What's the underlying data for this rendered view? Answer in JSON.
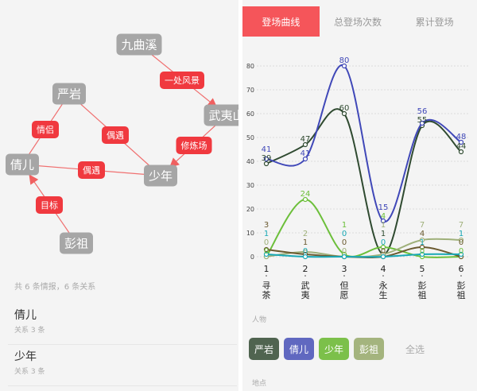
{
  "graph": {
    "nodes": [
      {
        "id": "jqx",
        "label": "九曲溪"
      },
      {
        "id": "yy",
        "label": "严岩"
      },
      {
        "id": "wys",
        "label": "武夷山"
      },
      {
        "id": "qe",
        "label": "倩儿"
      },
      {
        "id": "sn",
        "label": "少年"
      },
      {
        "id": "pz",
        "label": "彭祖"
      }
    ],
    "edges": [
      {
        "from": "jqx",
        "to": "wys",
        "label": "一处风景",
        "directed": true
      },
      {
        "from": "yy",
        "to": "qe",
        "label": "情侣",
        "directed": false
      },
      {
        "from": "yy",
        "to": "sn",
        "label": "偶遇",
        "directed": false
      },
      {
        "from": "wys",
        "to": "sn",
        "label": "修炼场",
        "directed": true
      },
      {
        "from": "sn",
        "to": "qe",
        "label": "偶遇",
        "directed": false
      },
      {
        "from": "pz",
        "to": "qe",
        "label": "目标",
        "directed": true
      }
    ],
    "node_color": "#a6a6a6",
    "edge_color": "#f0393f"
  },
  "summary": "共 6 条情报，6 条关系",
  "list": [
    {
      "name": "倩儿",
      "sub": "关系 3 条"
    },
    {
      "name": "少年",
      "sub": "关系 3 条"
    }
  ],
  "tabs": [
    "登场曲线",
    "总登场次数",
    "累计登场"
  ],
  "accent": "#f5555a",
  "chart_data": {
    "type": "line",
    "x": [
      1,
      2,
      3,
      4,
      5,
      6
    ],
    "x_sublabels": [
      "寻茶",
      "武夷",
      "但愿",
      "永生",
      "彭祖",
      "彭祖"
    ],
    "ylim": [
      0,
      85
    ],
    "yticks": [
      0,
      10,
      20,
      30,
      40,
      50,
      60,
      70,
      80
    ],
    "grid": true,
    "series": [
      {
        "name": "严岩",
        "color": "#2f4a30",
        "values": [
          39,
          47,
          60,
          1,
          55,
          44
        ]
      },
      {
        "name": "倩儿",
        "color": "#4048b8",
        "values": [
          41,
          41,
          80,
          15,
          56,
          48
        ]
      },
      {
        "name": "少年",
        "color": "#6cbf3a",
        "values": [
          0,
          24,
          1,
          4,
          0,
          0
        ]
      },
      {
        "name": "彭祖",
        "color": "#9fb07a",
        "values": [
          0,
          2,
          0,
          1,
          7,
          7
        ]
      },
      {
        "color": "#6b5a30",
        "values": [
          3,
          1,
          0,
          0,
          4,
          0
        ]
      },
      {
        "color": "#19a8b5",
        "values": [
          1,
          0,
          0,
          0,
          1,
          1
        ]
      }
    ]
  },
  "filters": {
    "people_label": "人物",
    "chips": [
      {
        "label": "严岩",
        "color": "#506450"
      },
      {
        "label": "倩儿",
        "color": "#6068c0"
      },
      {
        "label": "少年",
        "color": "#7cc04a"
      },
      {
        "label": "彭祖",
        "color": "#a4b47e"
      }
    ],
    "select_all": "全选",
    "place_label": "地点"
  }
}
